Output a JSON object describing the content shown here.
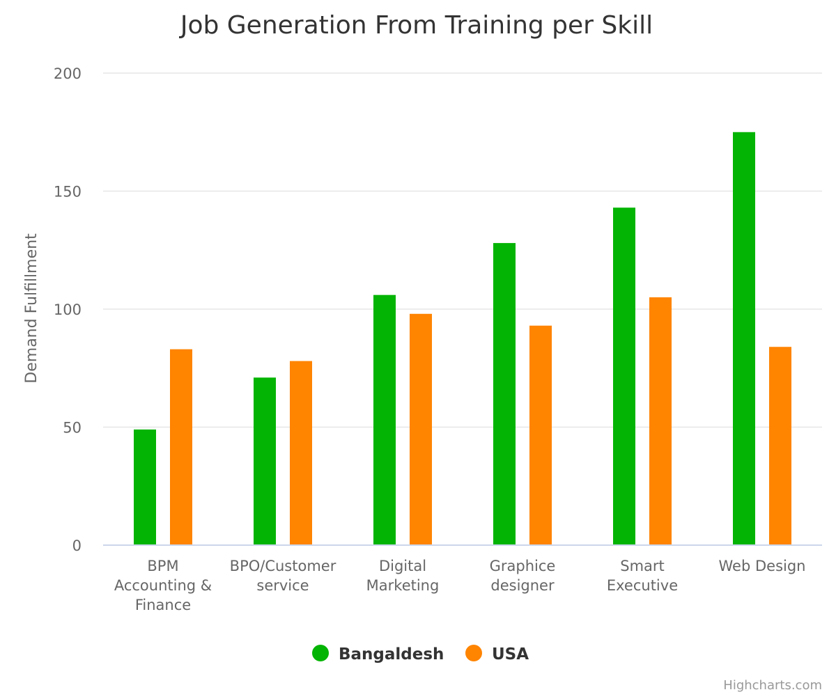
{
  "chart_data": {
    "type": "bar",
    "title": "Job Generation From Training per Skill",
    "ylabel": "Demand Fulfillment",
    "xlabel": "",
    "ylim": [
      0,
      200
    ],
    "yticks": [
      0,
      50,
      100,
      150,
      200
    ],
    "grid": true,
    "legend_position": "bottom",
    "categories": [
      [
        "BPM",
        "Accounting &",
        "Finance"
      ],
      [
        "BPO/Customer",
        "service"
      ],
      [
        "Digital",
        "Marketing"
      ],
      [
        "Graphice",
        "designer"
      ],
      [
        "Smart",
        "Executive"
      ],
      [
        "Web Design"
      ]
    ],
    "series": [
      {
        "name": "Bangaldesh",
        "color": "#04b404",
        "values": [
          49,
          71,
          106,
          128,
          143,
          175
        ]
      },
      {
        "name": "USA",
        "color": "#ff8400",
        "values": [
          83,
          78,
          98,
          93,
          105,
          84
        ]
      }
    ],
    "credits": "Highcharts.com"
  }
}
